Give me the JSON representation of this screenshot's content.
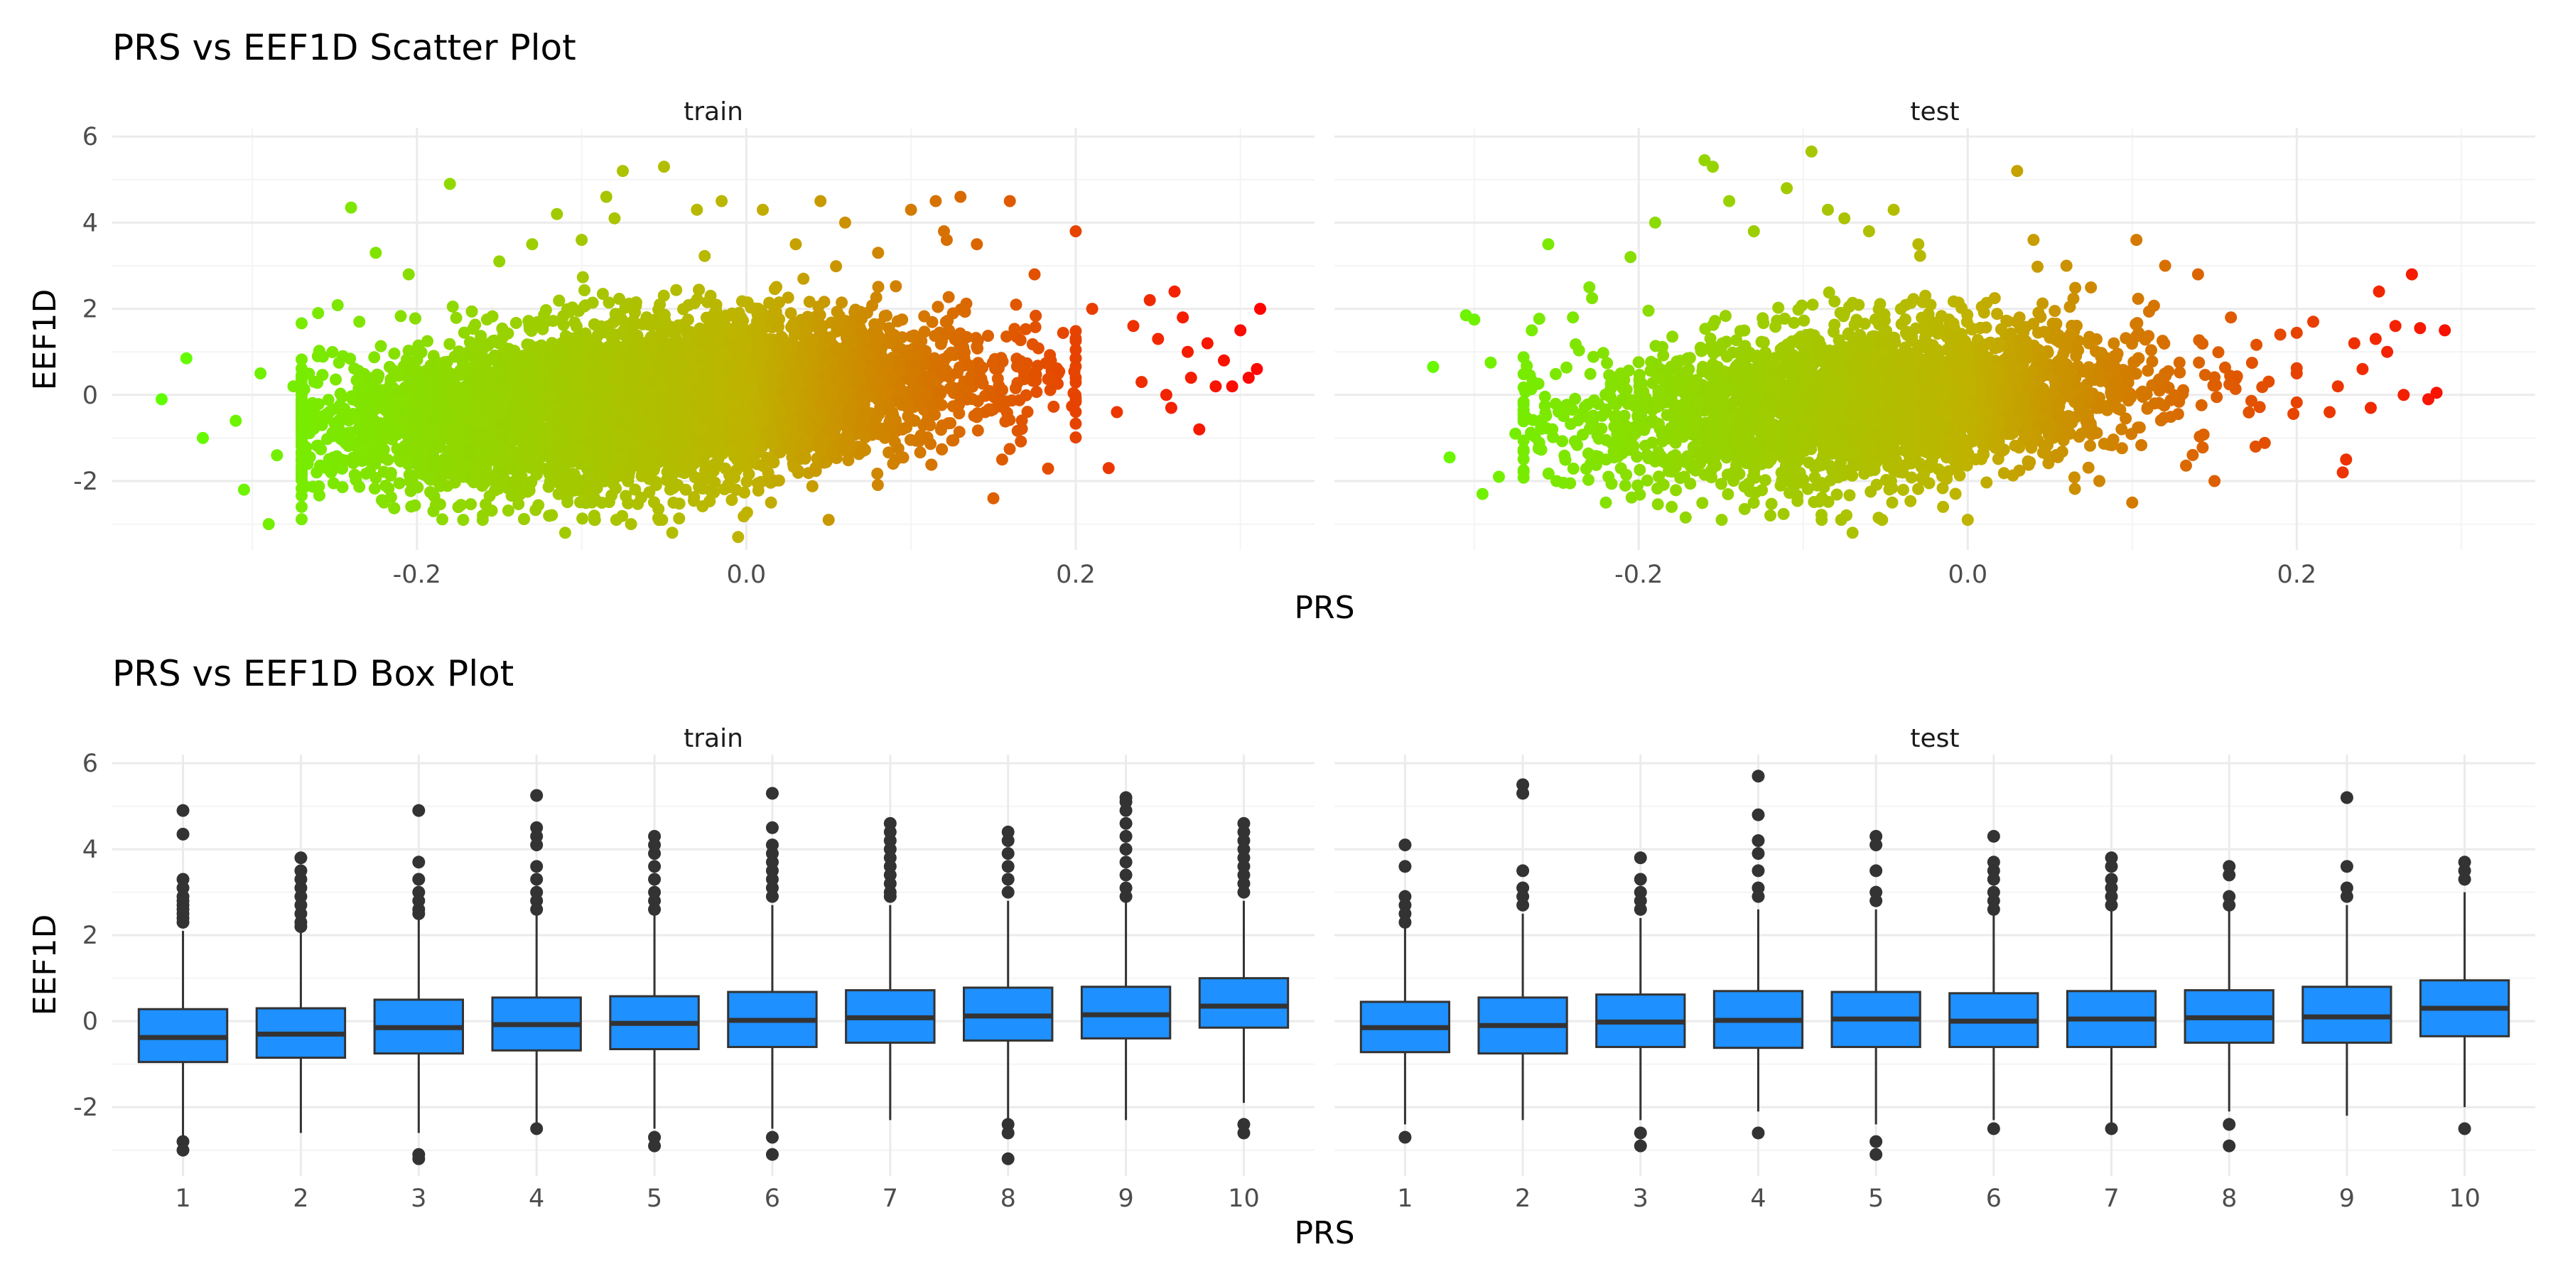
{
  "chart_data": [
    {
      "type": "scatter",
      "title": "PRS vs EEF1D Scatter Plot",
      "xlabel": "PRS",
      "ylabel": "EEF1D",
      "xlim": [
        -0.385,
        0.345
      ],
      "ylim": [
        -3.6,
        6.2
      ],
      "x_ticks": [
        -0.2,
        0.0,
        0.2
      ],
      "x_tick_labels": [
        "-0.2",
        "0.0",
        "0.2"
      ],
      "y_ticks": [
        -2,
        0,
        2,
        4,
        6
      ],
      "y_tick_labels": [
        "-2",
        "0",
        "2",
        "4",
        "6"
      ],
      "grid": true,
      "legend": "none",
      "color_mapping": {
        "variable": "PRS",
        "low": "#5fff00",
        "mid": "#bfb300",
        "high": "#ff0000"
      },
      "facets": [
        {
          "name": "train",
          "summary": {
            "n_points_approx": 20000,
            "x_range": [
              -0.36,
              0.31
            ],
            "y_range": [
              -3.3,
              5.3
            ],
            "trend": "positive"
          },
          "points": [
            [
              -0.355,
              -0.1
            ],
            [
              -0.34,
              0.85
            ],
            [
              -0.33,
              -1.0
            ],
            [
              -0.31,
              -0.6
            ],
            [
              -0.305,
              -2.2
            ],
            [
              -0.295,
              0.5
            ],
            [
              -0.29,
              -3.0
            ],
            [
              -0.285,
              -1.4
            ],
            [
              -0.275,
              0.2
            ],
            [
              -0.27,
              -2.6
            ],
            [
              -0.26,
              1.9
            ],
            [
              -0.255,
              -1.7
            ],
            [
              -0.245,
              0.9
            ],
            [
              -0.24,
              4.35
            ],
            [
              -0.235,
              1.7
            ],
            [
              -0.225,
              3.3
            ],
            [
              -0.22,
              -2.5
            ],
            [
              -0.205,
              2.8
            ],
            [
              -0.19,
              -2.7
            ],
            [
              -0.18,
              4.9
            ],
            [
              -0.16,
              -2.8
            ],
            [
              -0.15,
              3.1
            ],
            [
              -0.13,
              3.5
            ],
            [
              -0.115,
              4.2
            ],
            [
              -0.11,
              -3.2
            ],
            [
              -0.1,
              3.6
            ],
            [
              -0.085,
              4.6
            ],
            [
              -0.08,
              4.1
            ],
            [
              -0.075,
              5.2
            ],
            [
              -0.07,
              -3.0
            ],
            [
              -0.05,
              5.3
            ],
            [
              -0.045,
              -3.2
            ],
            [
              -0.03,
              4.3
            ],
            [
              -0.015,
              4.5
            ],
            [
              -0.005,
              -3.3
            ],
            [
              0.01,
              4.3
            ],
            [
              0.015,
              -2.5
            ],
            [
              0.03,
              3.5
            ],
            [
              0.045,
              4.5
            ],
            [
              0.05,
              -2.9
            ],
            [
              0.06,
              4.0
            ],
            [
              0.08,
              3.3
            ],
            [
              0.1,
              4.3
            ],
            [
              0.115,
              4.5
            ],
            [
              0.12,
              3.8
            ],
            [
              0.13,
              4.6
            ],
            [
              0.14,
              3.5
            ],
            [
              0.16,
              4.5
            ],
            [
              0.175,
              2.8
            ],
            [
              0.2,
              3.8
            ],
            [
              0.15,
              -2.4
            ],
            [
              0.21,
              2.0
            ],
            [
              0.22,
              -1.7
            ],
            [
              0.225,
              -0.4
            ],
            [
              0.235,
              1.6
            ],
            [
              0.245,
              2.2
            ],
            [
              0.25,
              1.3
            ],
            [
              0.255,
              0.0
            ],
            [
              0.26,
              2.4
            ],
            [
              0.265,
              1.8
            ],
            [
              0.27,
              0.4
            ],
            [
              0.275,
              -0.8
            ],
            [
              0.28,
              1.2
            ],
            [
              0.285,
              0.2
            ],
            [
              0.29,
              0.8
            ],
            [
              0.295,
              0.2
            ],
            [
              0.3,
              1.5
            ],
            [
              0.305,
              0.4
            ],
            [
              0.31,
              0.6
            ],
            [
              0.312,
              2.0
            ],
            [
              0.258,
              -0.3
            ],
            [
              0.268,
              1.0
            ],
            [
              0.24,
              0.3
            ]
          ]
        },
        {
          "name": "test",
          "summary": {
            "n_points_approx": 6500,
            "x_range": [
              -0.33,
              0.295
            ],
            "y_range": [
              -3.2,
              5.7
            ],
            "trend": "positive"
          },
          "points": [
            [
              -0.325,
              0.65
            ],
            [
              -0.315,
              -1.45
            ],
            [
              -0.305,
              1.85
            ],
            [
              -0.3,
              1.75
            ],
            [
              -0.295,
              -2.3
            ],
            [
              -0.29,
              0.75
            ],
            [
              -0.285,
              -1.9
            ],
            [
              -0.275,
              -0.9
            ],
            [
              -0.265,
              1.5
            ],
            [
              -0.255,
              3.5
            ],
            [
              -0.25,
              -2.0
            ],
            [
              -0.24,
              1.8
            ],
            [
              -0.23,
              2.5
            ],
            [
              -0.22,
              -2.5
            ],
            [
              -0.205,
              3.2
            ],
            [
              -0.19,
              4.0
            ],
            [
              -0.18,
              -2.6
            ],
            [
              -0.16,
              5.45
            ],
            [
              -0.155,
              5.3
            ],
            [
              -0.145,
              4.5
            ],
            [
              -0.13,
              3.8
            ],
            [
              -0.12,
              -2.8
            ],
            [
              -0.11,
              4.8
            ],
            [
              -0.095,
              5.65
            ],
            [
              -0.085,
              4.3
            ],
            [
              -0.075,
              4.1
            ],
            [
              -0.07,
              -3.2
            ],
            [
              -0.06,
              3.8
            ],
            [
              -0.045,
              4.3
            ],
            [
              -0.03,
              3.5
            ],
            [
              -0.015,
              -2.6
            ],
            [
              0.0,
              -2.9
            ],
            [
              0.03,
              5.2
            ],
            [
              0.04,
              3.6
            ],
            [
              0.06,
              3.0
            ],
            [
              0.08,
              -2.0
            ],
            [
              0.1,
              -2.5
            ],
            [
              0.12,
              3.0
            ],
            [
              0.14,
              2.8
            ],
            [
              0.15,
              -2.0
            ],
            [
              0.16,
              1.8
            ],
            [
              0.175,
              -1.2
            ],
            [
              0.19,
              1.4
            ],
            [
              0.2,
              0.5
            ],
            [
              0.21,
              1.7
            ],
            [
              0.22,
              -0.4
            ],
            [
              0.225,
              0.2
            ],
            [
              0.23,
              -1.5
            ],
            [
              0.235,
              1.2
            ],
            [
              0.24,
              0.6
            ],
            [
              0.245,
              -0.3
            ],
            [
              0.25,
              2.4
            ],
            [
              0.255,
              1.0
            ],
            [
              0.26,
              1.6
            ],
            [
              0.265,
              0.0
            ],
            [
              0.27,
              2.8
            ],
            [
              0.275,
              1.55
            ],
            [
              0.285,
              0.05
            ],
            [
              0.29,
              1.5
            ],
            [
              0.28,
              -0.1
            ],
            [
              0.228,
              -1.8
            ],
            [
              0.248,
              1.3
            ]
          ]
        }
      ]
    },
    {
      "type": "box",
      "title": "PRS vs EEF1D Box Plot",
      "xlabel": "PRS",
      "ylabel": "EEF1D",
      "categories": [
        "1",
        "2",
        "3",
        "4",
        "5",
        "6",
        "7",
        "8",
        "9",
        "10"
      ],
      "ylim": [
        -3.6,
        6.2
      ],
      "y_ticks": [
        -2,
        0,
        2,
        4,
        6
      ],
      "y_tick_labels": [
        "-2",
        "0",
        "2",
        "4",
        "6"
      ],
      "grid": true,
      "box_color": "#1e90ff",
      "facets": [
        {
          "name": "train",
          "boxes": [
            {
              "q1": -0.95,
              "median": -0.38,
              "q3": 0.28,
              "lower_whisker": -2.7,
              "upper_whisker": 2.1,
              "outliers": [
                4.9,
                4.35,
                3.3,
                3.1,
                2.9,
                2.8,
                2.7,
                2.6,
                2.5,
                2.4,
                2.3,
                -2.8,
                -3.0
              ]
            },
            {
              "q1": -0.85,
              "median": -0.3,
              "q3": 0.3,
              "lower_whisker": -2.6,
              "upper_whisker": 2.1,
              "outliers": [
                3.8,
                3.5,
                3.3,
                3.1,
                2.9,
                2.7,
                2.5,
                2.3,
                2.2
              ]
            },
            {
              "q1": -0.75,
              "median": -0.15,
              "q3": 0.5,
              "lower_whisker": -2.6,
              "upper_whisker": 2.4,
              "outliers": [
                4.9,
                3.7,
                3.3,
                3.0,
                2.8,
                2.6,
                2.5,
                -3.1,
                -3.2
              ]
            },
            {
              "q1": -0.68,
              "median": -0.08,
              "q3": 0.55,
              "lower_whisker": -2.4,
              "upper_whisker": 2.5,
              "outliers": [
                5.25,
                4.5,
                4.3,
                4.1,
                3.6,
                3.3,
                3.0,
                2.8,
                2.6,
                -2.5
              ]
            },
            {
              "q1": -0.65,
              "median": -0.05,
              "q3": 0.58,
              "lower_whisker": -2.5,
              "upper_whisker": 2.5,
              "outliers": [
                4.3,
                4.1,
                3.9,
                3.6,
                3.3,
                3.0,
                2.8,
                2.6,
                -2.7,
                -2.9
              ]
            },
            {
              "q1": -0.6,
              "median": 0.02,
              "q3": 0.68,
              "lower_whisker": -2.5,
              "upper_whisker": 2.7,
              "outliers": [
                5.3,
                4.5,
                4.1,
                3.9,
                3.7,
                3.5,
                3.3,
                3.1,
                2.9,
                -2.7,
                -3.1
              ]
            },
            {
              "q1": -0.5,
              "median": 0.08,
              "q3": 0.72,
              "lower_whisker": -2.3,
              "upper_whisker": 2.7,
              "outliers": [
                4.6,
                4.4,
                4.2,
                4.0,
                3.8,
                3.6,
                3.4,
                3.2,
                3.0,
                2.9
              ]
            },
            {
              "q1": -0.45,
              "median": 0.12,
              "q3": 0.78,
              "lower_whisker": -2.3,
              "upper_whisker": 2.8,
              "outliers": [
                4.4,
                4.2,
                3.9,
                3.6,
                3.3,
                3.0,
                -2.4,
                -2.6,
                -3.2
              ]
            },
            {
              "q1": -0.4,
              "median": 0.15,
              "q3": 0.8,
              "lower_whisker": -2.3,
              "upper_whisker": 2.8,
              "outliers": [
                5.2,
                5.1,
                4.9,
                4.6,
                4.3,
                4.0,
                3.7,
                3.4,
                3.1,
                2.9
              ]
            },
            {
              "q1": -0.15,
              "median": 0.35,
              "q3": 1.0,
              "lower_whisker": -1.9,
              "upper_whisker": 2.8,
              "outliers": [
                4.6,
                4.4,
                4.2,
                4.0,
                3.8,
                3.6,
                3.4,
                3.2,
                3.0,
                -2.4,
                -2.6
              ]
            }
          ]
        },
        {
          "name": "test",
          "boxes": [
            {
              "q1": -0.72,
              "median": -0.15,
              "q3": 0.45,
              "lower_whisker": -2.4,
              "upper_whisker": 2.2,
              "outliers": [
                4.1,
                3.6,
                2.9,
                2.7,
                2.5,
                2.3,
                -2.7
              ]
            },
            {
              "q1": -0.75,
              "median": -0.1,
              "q3": 0.55,
              "lower_whisker": -2.3,
              "upper_whisker": 2.5,
              "outliers": [
                5.5,
                5.3,
                3.5,
                3.1,
                2.9,
                2.7
              ]
            },
            {
              "q1": -0.6,
              "median": -0.02,
              "q3": 0.62,
              "lower_whisker": -2.3,
              "upper_whisker": 2.4,
              "outliers": [
                3.8,
                3.3,
                3.0,
                2.8,
                2.6,
                -2.6,
                -2.9
              ]
            },
            {
              "q1": -0.62,
              "median": 0.02,
              "q3": 0.7,
              "lower_whisker": -2.1,
              "upper_whisker": 2.6,
              "outliers": [
                5.7,
                4.8,
                4.2,
                3.9,
                3.5,
                3.1,
                2.9,
                -2.6
              ]
            },
            {
              "q1": -0.6,
              "median": 0.05,
              "q3": 0.68,
              "lower_whisker": -2.4,
              "upper_whisker": 2.6,
              "outliers": [
                4.3,
                4.1,
                3.5,
                3.0,
                2.8,
                -2.8,
                -3.1
              ]
            },
            {
              "q1": -0.6,
              "median": 0.0,
              "q3": 0.65,
              "lower_whisker": -2.3,
              "upper_whisker": 2.5,
              "outliers": [
                4.3,
                3.7,
                3.5,
                3.3,
                3.0,
                2.8,
                2.6,
                -2.5
              ]
            },
            {
              "q1": -0.6,
              "median": 0.05,
              "q3": 0.7,
              "lower_whisker": -2.4,
              "upper_whisker": 2.6,
              "outliers": [
                3.8,
                3.6,
                3.3,
                3.1,
                2.9,
                2.7,
                -2.5
              ]
            },
            {
              "q1": -0.5,
              "median": 0.08,
              "q3": 0.72,
              "lower_whisker": -2.1,
              "upper_whisker": 2.6,
              "outliers": [
                3.6,
                3.4,
                2.9,
                2.7,
                -2.4,
                -2.9
              ]
            },
            {
              "q1": -0.5,
              "median": 0.1,
              "q3": 0.8,
              "lower_whisker": -2.2,
              "upper_whisker": 2.7,
              "outliers": [
                5.2,
                3.6,
                3.1,
                2.9
              ]
            },
            {
              "q1": -0.35,
              "median": 0.3,
              "q3": 0.95,
              "lower_whisker": -2.0,
              "upper_whisker": 3.0,
              "outliers": [
                3.7,
                3.5,
                3.3,
                -2.5
              ]
            }
          ]
        }
      ]
    }
  ]
}
